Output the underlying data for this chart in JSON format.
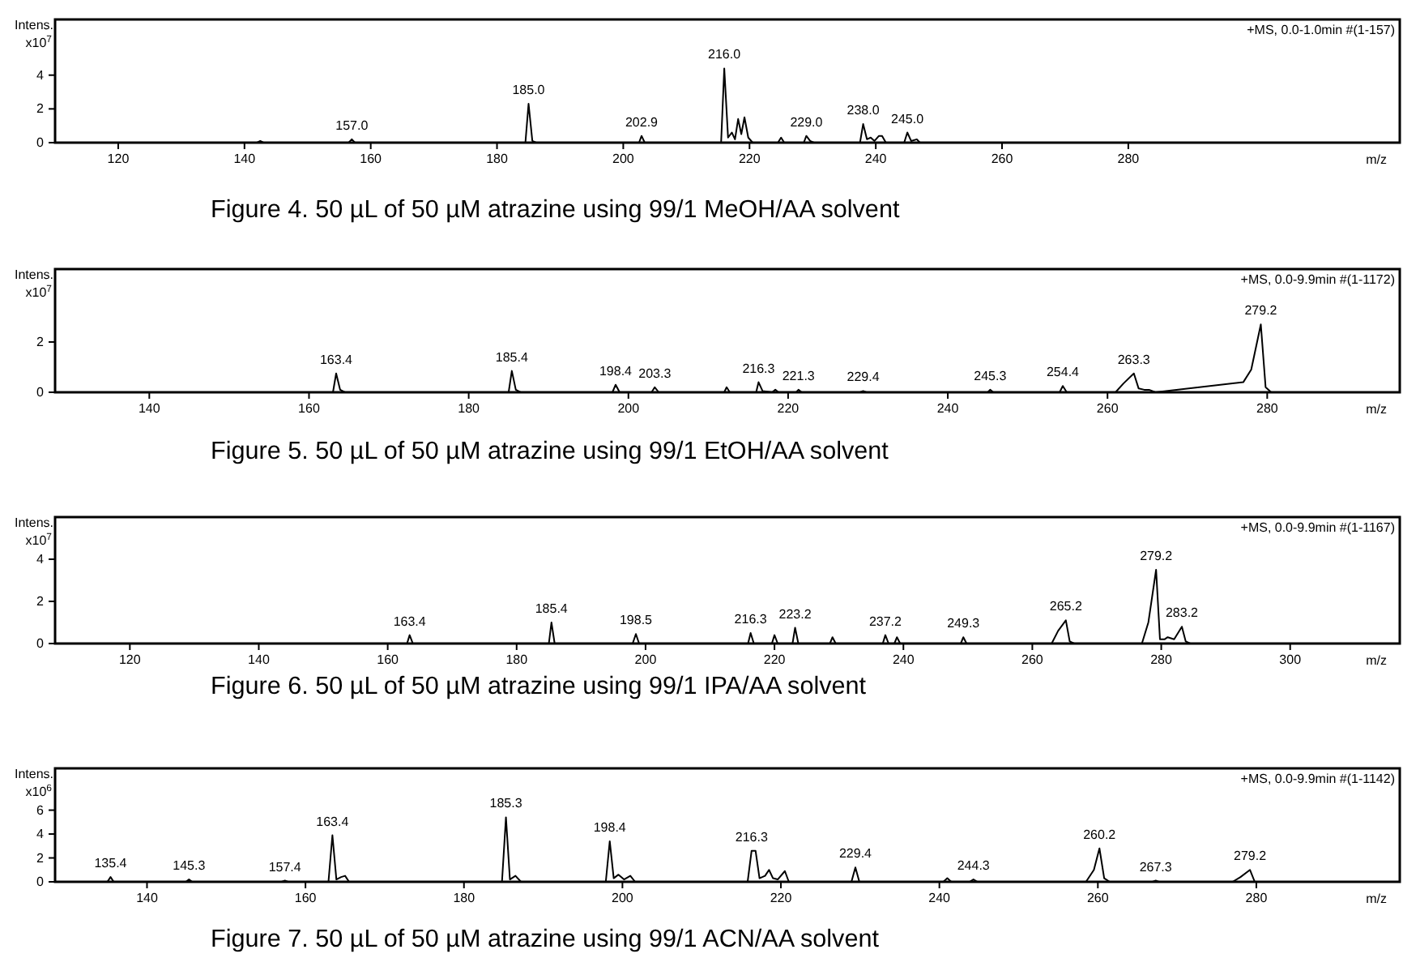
{
  "chart_data": [
    {
      "type": "line",
      "xlabel": "m/z",
      "ylabel": "Intens. x10$^{7}$",
      "xlim": [
        110,
        323
      ],
      "xticks": [
        120,
        140,
        160,
        180,
        200,
        220,
        240,
        260,
        280
      ],
      "ylim": [
        0,
        7.3
      ],
      "yticks": [
        0,
        2,
        4
      ],
      "grid": false,
      "series": [
        {
          "color": "#000000",
          "x": [
            110,
            142,
            142.5,
            143,
            156.5,
            157,
            157.5,
            184.5,
            185,
            185.6,
            186.2,
            202.5,
            202.9,
            203.4,
            215.5,
            216,
            216.6,
            217.2,
            217.7,
            218.2,
            218.7,
            219.2,
            219.8,
            220.5,
            224.5,
            225,
            225.5,
            228.6,
            229,
            229.6,
            230.2,
            237.5,
            238,
            238.6,
            239.2,
            239.8,
            240.5,
            241,
            241.6,
            244.5,
            245,
            245.6,
            246.5,
            247,
            323
          ],
          "values": [
            0,
            0,
            0.1,
            0,
            0,
            0.2,
            0,
            0,
            2.3,
            0.1,
            0,
            0,
            0.4,
            0,
            0,
            4.4,
            0.3,
            0.6,
            0.2,
            1.4,
            0.5,
            1.5,
            0.3,
            0,
            0,
            0.3,
            0,
            0,
            0.4,
            0.1,
            0,
            0,
            1.1,
            0.2,
            0.3,
            0.1,
            0.4,
            0.4,
            0,
            0,
            0.6,
            0.1,
            0.2,
            0,
            0
          ]
        }
      ],
      "annotations": [
        "+MS, 0.0-1.0min #(1-157)",
        "Figure 4. 50 µL of 50 µM atrazine using 99/1 MeOH/AA solvent",
        {
          "text": "157.0",
          "x": 157,
          "y": 0.2
        },
        {
          "text": "185.0",
          "x": 185,
          "y": 2.3
        },
        {
          "text": "202.9",
          "x": 202.9,
          "y": 0.4
        },
        {
          "text": "216.0",
          "x": 216,
          "y": 4.4
        },
        {
          "text": "229.0",
          "x": 229,
          "y": 0.4
        },
        {
          "text": "238.0",
          "x": 238,
          "y": 1.1
        },
        {
          "text": "245.0",
          "x": 245,
          "y": 0.6
        }
      ]
    },
    {
      "type": "line",
      "xlabel": "m/z",
      "ylabel": "Intens. x10$^{7}$",
      "xlim": [
        128.2,
        296.6
      ],
      "xticks": [
        140,
        160,
        180,
        200,
        220,
        240,
        260,
        280
      ],
      "ylim": [
        0,
        4.9
      ],
      "yticks": [
        0,
        2
      ],
      "grid": false,
      "series": [
        {
          "color": "#000000",
          "x": [
            128.2,
            163,
            163.4,
            163.9,
            164.5,
            185,
            185.4,
            185.9,
            186.5,
            198,
            198.4,
            198.9,
            202.9,
            203.3,
            203.8,
            212,
            212.3,
            212.7,
            216,
            216.3,
            216.8,
            218,
            218.4,
            218.8,
            221,
            221.3,
            221.7,
            229,
            229.4,
            229.8,
            245,
            245.3,
            245.7,
            254,
            254.4,
            254.9,
            261,
            262,
            263.3,
            263.9,
            264.6,
            265.2,
            266,
            277,
            278,
            279.2,
            279.8,
            280.5,
            296.6
          ],
          "values": [
            0,
            0,
            0.75,
            0.1,
            0,
            0,
            0.85,
            0.1,
            0,
            0,
            0.3,
            0,
            0,
            0.2,
            0,
            0,
            0.2,
            0,
            0,
            0.4,
            0.05,
            0,
            0.1,
            0,
            0,
            0.1,
            0,
            0,
            0.05,
            0,
            0,
            0.1,
            0,
            0,
            0.25,
            0,
            0,
            0.35,
            0.75,
            0.15,
            0.1,
            0.1,
            0,
            0.4,
            0.9,
            2.7,
            0.2,
            0,
            0
          ]
        }
      ],
      "annotations": [
        "+MS, 0.0-9.9min #(1-1172)",
        "Figure 5. 50 µL of 50 µM atrazine using 99/1 EtOH/AA solvent",
        {
          "text": "163.4",
          "x": 163.4,
          "y": 0.75
        },
        {
          "text": "185.4",
          "x": 185.4,
          "y": 0.85
        },
        {
          "text": "198.4",
          "x": 198.4,
          "y": 0.3
        },
        {
          "text": "203.3",
          "x": 203.3,
          "y": 0.2
        },
        {
          "text": "216.3",
          "x": 216.3,
          "y": 0.4
        },
        {
          "text": "221.3",
          "x": 221.3,
          "y": 0.1
        },
        {
          "text": "229.4",
          "x": 229.4,
          "y": 0.05
        },
        {
          "text": "245.3",
          "x": 245.3,
          "y": 0.1
        },
        {
          "text": "254.4",
          "x": 254.4,
          "y": 0.25
        },
        {
          "text": "263.3",
          "x": 263.3,
          "y": 0.75
        },
        {
          "text": "279.2",
          "x": 279.2,
          "y": 2.7
        }
      ]
    },
    {
      "type": "line",
      "xlabel": "m/z",
      "ylabel": "Intens. x10$^{7}$",
      "xlim": [
        108.4,
        317
      ],
      "xticks": [
        120,
        140,
        160,
        180,
        200,
        220,
        240,
        260,
        280,
        300
      ],
      "ylim": [
        0,
        6
      ],
      "yticks": [
        0,
        2,
        4
      ],
      "grid": false,
      "series": [
        {
          "color": "#000000",
          "x": [
            108.4,
            163,
            163.4,
            163.9,
            185,
            185.4,
            185.9,
            198,
            198.5,
            199,
            215.9,
            216.3,
            216.8,
            219.6,
            220,
            220.5,
            222.8,
            223.2,
            223.7,
            228.6,
            229,
            229.5,
            236.8,
            237.2,
            237.7,
            238.6,
            239,
            239.5,
            248.9,
            249.3,
            249.8,
            263,
            264,
            265.2,
            265.8,
            266.5,
            277,
            278,
            279.2,
            279.8,
            280.5,
            281,
            282,
            283.2,
            283.8,
            284.5,
            317
          ],
          "values": [
            0,
            0,
            0.4,
            0,
            0,
            1,
            0,
            0,
            0.45,
            0,
            0,
            0.5,
            0,
            0,
            0.4,
            0,
            0,
            0.75,
            0,
            0,
            0.3,
            0,
            0,
            0.4,
            0,
            0,
            0.3,
            0,
            0,
            0.3,
            0,
            0,
            0.6,
            1.1,
            0.1,
            0,
            0,
            1,
            3.5,
            0.2,
            0.2,
            0.3,
            0.2,
            0.8,
            0.1,
            0,
            0
          ]
        }
      ],
      "annotations": [
        "+MS, 0.0-9.9min #(1-1167)",
        "Figure 6. 50 µL of 50 µM atrazine using 99/1 IPA/AA solvent",
        {
          "text": "163.4",
          "x": 163.4,
          "y": 0.4
        },
        {
          "text": "185.4",
          "x": 185.4,
          "y": 1
        },
        {
          "text": "198.5",
          "x": 198.5,
          "y": 0.45
        },
        {
          "text": "216.3",
          "x": 216.3,
          "y": 0.5
        },
        {
          "text": "223.2",
          "x": 223.2,
          "y": 0.75
        },
        {
          "text": "237.2",
          "x": 237.2,
          "y": 0.4
        },
        {
          "text": "249.3",
          "x": 249.3,
          "y": 0.3
        },
        {
          "text": "265.2",
          "x": 265.2,
          "y": 1.1
        },
        {
          "text": "279.2",
          "x": 279.2,
          "y": 3.5
        },
        {
          "text": "283.2",
          "x": 283.2,
          "y": 0.8
        }
      ]
    },
    {
      "type": "line",
      "xlabel": "m/z",
      "ylabel": "Intens. x10$^{6}$",
      "xlim": [
        128.4,
        298.1
      ],
      "xticks": [
        140,
        160,
        180,
        200,
        220,
        240,
        260,
        280
      ],
      "ylim": [
        0,
        9.5
      ],
      "yticks": [
        0,
        2,
        4,
        6
      ],
      "grid": false,
      "series": [
        {
          "color": "#000000",
          "x": [
            128.4,
            135,
            135.4,
            135.8,
            144.9,
            145.3,
            145.7,
            157,
            157.4,
            157.8,
            162.9,
            163.4,
            163.9,
            164.5,
            165,
            165.5,
            184.8,
            185.3,
            185.8,
            186.5,
            187.2,
            197.9,
            198.4,
            198.9,
            199.5,
            200.2,
            201,
            201.6,
            215.8,
            216.3,
            216.8,
            217.3,
            218,
            218.5,
            219,
            219.6,
            220.5,
            221,
            228.9,
            229.4,
            229.9,
            240.5,
            241,
            241.5,
            243.8,
            244.3,
            244.8,
            258.5,
            259.5,
            260.2,
            260.8,
            261.5,
            266.9,
            267.3,
            267.7,
            277,
            278,
            279.2,
            279.8,
            298.1
          ],
          "values": [
            0,
            0,
            0.4,
            0,
            0,
            0.2,
            0,
            0,
            0.1,
            0,
            0,
            3.9,
            0.2,
            0.4,
            0.5,
            0,
            0,
            5.4,
            0.2,
            0.5,
            0,
            0,
            3.4,
            0.3,
            0.6,
            0.2,
            0.5,
            0,
            0,
            2.6,
            2.6,
            0.3,
            0.5,
            1,
            0.3,
            0.2,
            0.9,
            0,
            0,
            1.2,
            0,
            0,
            0.3,
            0,
            0,
            0.2,
            0,
            0,
            1,
            2.8,
            0.3,
            0,
            0,
            0.1,
            0,
            0,
            0.4,
            1,
            0,
            0
          ]
        }
      ],
      "annotations": [
        "+MS, 0.0-9.9min #(1-1142)",
        "Figure 7. 50 µL of 50 µM atrazine using 99/1 ACN/AA solvent",
        {
          "text": "135.4",
          "x": 135.4,
          "y": 0.4
        },
        {
          "text": "145.3",
          "x": 145.3,
          "y": 0.2
        },
        {
          "text": "157.4",
          "x": 157.4,
          "y": 0.1
        },
        {
          "text": "163.4",
          "x": 163.4,
          "y": 3.9
        },
        {
          "text": "185.3",
          "x": 185.3,
          "y": 5.4
        },
        {
          "text": "198.4",
          "x": 198.4,
          "y": 3.4
        },
        {
          "text": "216.3",
          "x": 216.3,
          "y": 2.6
        },
        {
          "text": "229.4",
          "x": 229.4,
          "y": 1.2
        },
        {
          "text": "244.3",
          "x": 244.3,
          "y": 0.2
        },
        {
          "text": "260.2",
          "x": 260.2,
          "y": 2.8
        },
        {
          "text": "267.3",
          "x": 267.3,
          "y": 0.1
        },
        {
          "text": "279.2",
          "x": 279.2,
          "y": 1
        }
      ]
    }
  ]
}
